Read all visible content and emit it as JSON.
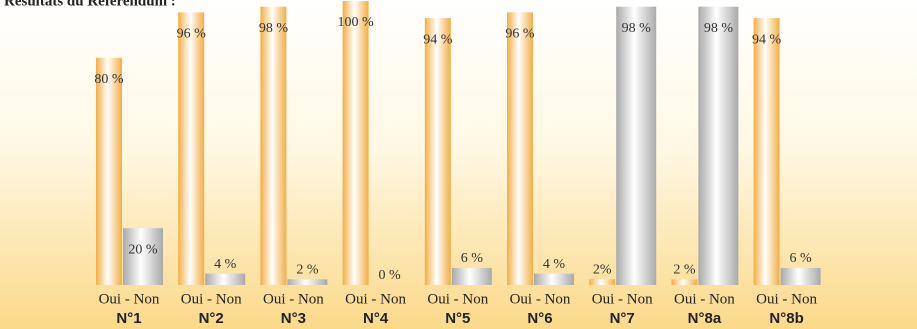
{
  "chart_data": {
    "type": "bar",
    "title": "Résultats du Référendum :",
    "categories": [
      "N°1",
      "N°2",
      "N°3",
      "N°4",
      "N°5",
      "N°6",
      "N°7",
      "N°8a",
      "N°8b"
    ],
    "group_caption": "Oui - Non",
    "series": [
      {
        "color": "#f2ae45",
        "values": [
          80,
          96,
          98,
          100,
          94,
          96,
          2,
          2,
          94
        ],
        "value_labels": [
          "80 %",
          "96 %",
          "98 %",
          "100 %",
          "94 %",
          "96 %",
          "2%",
          "2 %",
          "94 %"
        ]
      },
      {
        "color": "#a9a9a9",
        "values": [
          20,
          4,
          2,
          0,
          6,
          4,
          98,
          98,
          6
        ],
        "value_labels": [
          "20 %",
          "4 %",
          "2 %",
          "0 %",
          "6 %",
          "4 %",
          "98 %",
          "98 %",
          "6 %"
        ]
      }
    ],
    "ylim": [
      0,
      100
    ]
  }
}
